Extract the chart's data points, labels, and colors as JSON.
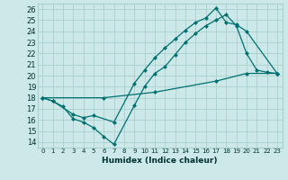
{
  "xlabel": "Humidex (Indice chaleur)",
  "bg_color": "#cce8e8",
  "grid_color": "#aacfcf",
  "line_color": "#007070",
  "xlim": [
    -0.5,
    23.5
  ],
  "ylim": [
    13.5,
    26.5
  ],
  "xticks": [
    0,
    1,
    2,
    3,
    4,
    5,
    6,
    7,
    8,
    9,
    10,
    11,
    12,
    13,
    14,
    15,
    16,
    17,
    18,
    19,
    20,
    21,
    22,
    23
  ],
  "yticks": [
    14,
    15,
    16,
    17,
    18,
    19,
    20,
    21,
    22,
    23,
    24,
    25,
    26
  ],
  "line1_x": [
    0,
    1,
    2,
    3,
    4,
    5,
    6,
    7,
    9,
    10,
    11,
    12,
    13,
    14,
    15,
    16,
    17,
    18,
    19,
    20,
    21,
    22,
    23
  ],
  "line1_y": [
    18.0,
    17.7,
    17.2,
    16.1,
    15.8,
    15.3,
    14.5,
    13.8,
    17.3,
    19.0,
    20.2,
    20.8,
    21.9,
    23.0,
    23.8,
    24.5,
    25.0,
    25.5,
    24.5,
    22.0,
    20.5,
    20.3,
    20.2
  ],
  "line2_x": [
    0,
    1,
    3,
    4,
    5,
    7,
    9,
    10,
    11,
    12,
    13,
    14,
    15,
    16,
    17,
    18,
    19,
    20,
    23
  ],
  "line2_y": [
    18.0,
    17.7,
    16.5,
    16.2,
    16.4,
    15.8,
    19.3,
    20.5,
    21.6,
    22.5,
    23.3,
    24.1,
    24.8,
    25.2,
    26.1,
    24.8,
    24.6,
    24.0,
    20.2
  ],
  "line3_x": [
    0,
    6,
    11,
    17,
    20,
    23
  ],
  "line3_y": [
    18.0,
    18.0,
    18.5,
    19.5,
    20.2,
    20.2
  ],
  "markersize": 2.5,
  "linewidth": 0.9
}
